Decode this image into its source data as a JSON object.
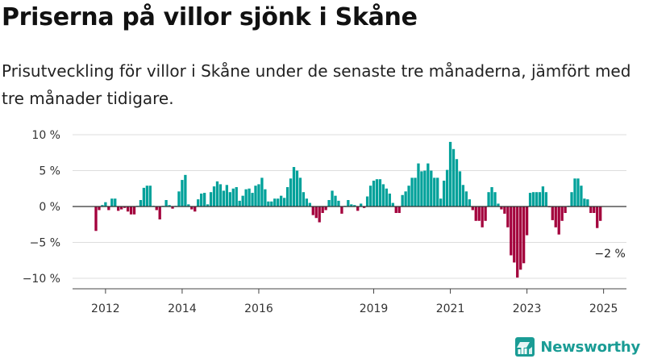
{
  "header": {
    "title": "Priserna på villor sjönk i Skåne",
    "subtitle": "Prisutveckling för villor i Skåne under de senaste tre månaderna, jämfört med tre månader tidigare."
  },
  "brand": {
    "name": "Newsworthy",
    "icon": "newsworthy-logo-icon"
  },
  "colors": {
    "positive": "#00a19a",
    "negative": "#a3003c",
    "grid": "#dddddd",
    "zero_line": "#333333",
    "brand": "#1a9c95"
  },
  "chart_data": {
    "type": "bar",
    "title": "",
    "xlabel": "",
    "ylabel": "",
    "frequency": "monthly",
    "start": "2011-10",
    "ylim": [
      -10.8,
      10
    ],
    "yticks": [
      {
        "value": 10,
        "label": "10 %"
      },
      {
        "value": 5,
        "label": "5 %"
      },
      {
        "value": 0,
        "label": "0 %"
      },
      {
        "value": -5,
        "label": "−5 %"
      },
      {
        "value": -10,
        "label": "−10 %"
      }
    ],
    "xticks": [
      {
        "label": "2012",
        "month": "2012-01"
      },
      {
        "label": "2014",
        "month": "2014-01"
      },
      {
        "label": "2016",
        "month": "2016-01"
      },
      {
        "label": "2019",
        "month": "2019-01"
      },
      {
        "label": "2021",
        "month": "2021-01"
      },
      {
        "label": "2023",
        "month": "2023-01"
      },
      {
        "label": "2025",
        "month": "2025-01"
      }
    ],
    "grid": true,
    "values": [
      -3.4,
      -0.5,
      0.2,
      0.6,
      -0.5,
      1.1,
      1.1,
      -0.6,
      -0.4,
      -0.2,
      -0.7,
      -1.1,
      -1.1,
      0.1,
      0.9,
      2.6,
      2.9,
      2.9,
      0.1,
      -0.5,
      -1.8,
      0.1,
      0.9,
      0.2,
      -0.3,
      0.1,
      2.1,
      3.7,
      4.4,
      0.3,
      -0.4,
      -0.7,
      1.0,
      1.8,
      1.9,
      0.3,
      2.0,
      2.8,
      3.5,
      3.1,
      2.2,
      3.0,
      2.0,
      2.5,
      2.7,
      0.8,
      1.5,
      2.4,
      2.5,
      1.9,
      2.9,
      3.1,
      4.0,
      2.4,
      0.7,
      0.7,
      1.1,
      1.1,
      1.5,
      1.2,
      2.7,
      3.9,
      5.5,
      5.0,
      4.0,
      2.0,
      1.1,
      0.5,
      -1.2,
      -1.6,
      -2.2,
      -0.9,
      -0.5,
      0.9,
      2.2,
      1.5,
      0.8,
      -1.0,
      0.1,
      0.9,
      0.3,
      0.2,
      -0.6,
      0.4,
      -0.2,
      1.4,
      2.9,
      3.6,
      3.8,
      3.8,
      3.1,
      2.5,
      1.8,
      0.5,
      -0.9,
      -0.9,
      1.6,
      2.1,
      2.9,
      4.0,
      4.0,
      6.0,
      4.9,
      5.0,
      6.0,
      5.0,
      4.0,
      4.0,
      1.1,
      3.6,
      5.1,
      9.0,
      8.0,
      6.6,
      4.9,
      3.0,
      2.1,
      1.0,
      -0.5,
      -2.0,
      -2.0,
      -2.9,
      -2.0,
      2.0,
      2.7,
      2.0,
      0.4,
      -0.4,
      -1.0,
      -2.9,
      -6.8,
      -7.8,
      -9.9,
      -8.8,
      -7.9,
      -4.0,
      1.9,
      2.0,
      2.0,
      2.0,
      2.8,
      2.0,
      -0.1,
      -1.9,
      -2.9,
      -3.9,
      -2.0,
      -0.9,
      0.1,
      2.0,
      3.9,
      3.9,
      2.9,
      1.1,
      1.0,
      -0.9,
      -0.9,
      -3.0,
      -2.0
    ],
    "annotations": [
      {
        "label": "−2 %",
        "month": "2025-03",
        "value": -2.0
      }
    ]
  }
}
